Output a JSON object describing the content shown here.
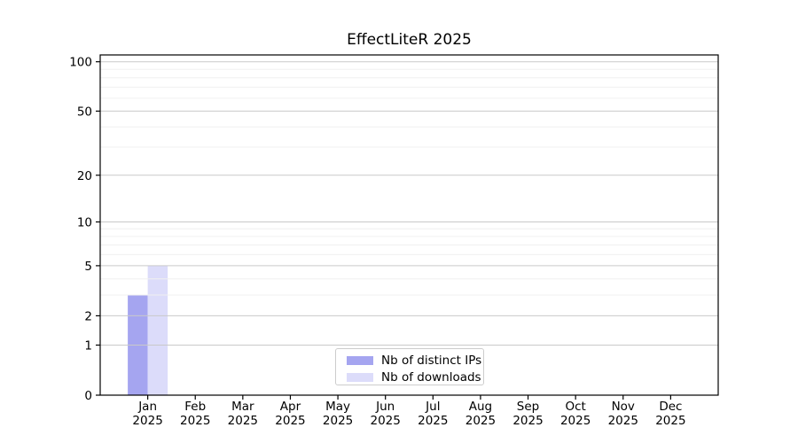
{
  "page": {
    "background": "#ffffff"
  },
  "chart_data": {
    "type": "bar",
    "title": "EffectLiteR 2025",
    "categories": [
      "Jan",
      "Feb",
      "Mar",
      "Apr",
      "May",
      "Jun",
      "Jul",
      "Aug",
      "Sep",
      "Oct",
      "Nov",
      "Dec"
    ],
    "year_label": "2025",
    "series": [
      {
        "name": "Nb of distinct IPs",
        "color": "#a5a5f0",
        "values": [
          3,
          0,
          0,
          0,
          0,
          0,
          0,
          0,
          0,
          0,
          0,
          0
        ]
      },
      {
        "name": "Nb of downloads",
        "color": "#dcdcfa",
        "values": [
          5,
          0,
          0,
          0,
          0,
          0,
          0,
          0,
          0,
          0,
          0,
          0
        ]
      }
    ],
    "xlabel": "",
    "ylabel": "",
    "y_scale": "log1p",
    "ylim": [
      0,
      110
    ],
    "y_major_ticks": [
      0,
      1,
      2,
      5,
      10,
      20,
      50,
      100
    ],
    "y_minor_gridlines": [
      3,
      4,
      6,
      7,
      8,
      9,
      30,
      40,
      60,
      70,
      80,
      90
    ],
    "grid": "major and minor horizontal gridlines, drawn above bars",
    "legend_position": "lower center inside plot",
    "colors": {
      "axis": "#000000",
      "text": "#000000",
      "major_grid": "#c9c9c9",
      "minor_grid": "#f0f0f0",
      "plot_background": "#ffffff"
    }
  }
}
